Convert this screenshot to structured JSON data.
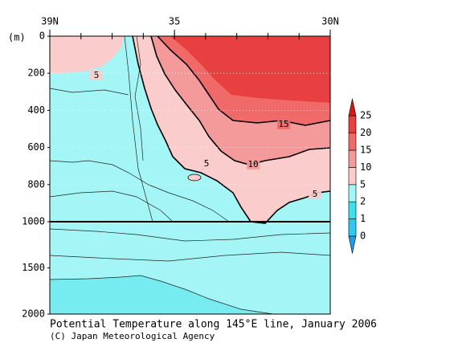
{
  "chart_data": {
    "type": "contour",
    "title": "Potential Temperature along 145°E line, January 2006",
    "credit": "(C) Japan Meteorological Agency",
    "y_label": "(m)",
    "xlim": [
      39,
      30
    ],
    "xticks": [
      {
        "value": 39,
        "label": "39N"
      },
      35,
      {
        "value": 30,
        "label": "30N"
      }
    ],
    "ylim": [
      0,
      1000
    ],
    "yticks": [
      0,
      200,
      400,
      600,
      800,
      1000
    ],
    "lower_ylim": [
      1000,
      2000
    ],
    "lower_yticks": [
      1500,
      2000
    ],
    "grid": true,
    "levels": [
      0,
      1,
      2,
      5,
      10,
      15,
      20,
      25
    ],
    "colors": [
      "#1e9fe8",
      "#30c8f0",
      "#40e0e8",
      "#a4f6f6",
      "#fbcccc",
      "#f59a9a",
      "#f06a6a",
      "#e84040",
      "#d41818"
    ],
    "contour_labels": [
      5,
      5,
      15,
      10,
      5
    ]
  }
}
